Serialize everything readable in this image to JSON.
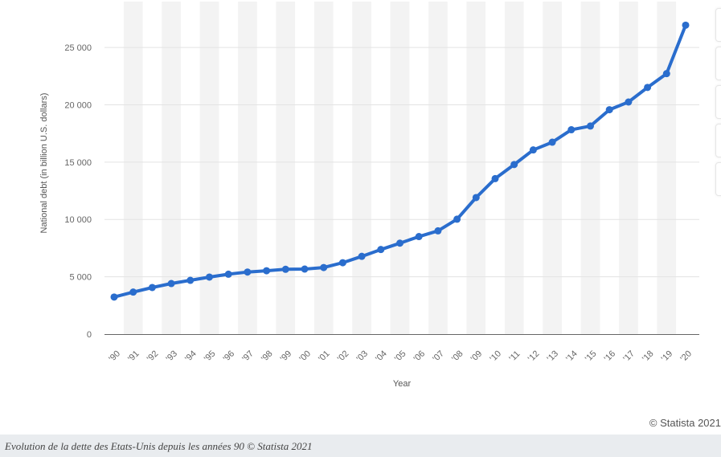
{
  "chart_data": {
    "type": "line",
    "title": "",
    "xlabel": "Year",
    "ylabel": "National debt (in billion U.S. dollars)",
    "categories": [
      "'90",
      "'91",
      "'92",
      "'93",
      "'94",
      "'95",
      "'96",
      "'97",
      "'98",
      "'99",
      "'00",
      "'01",
      "'02",
      "'03",
      "'04",
      "'05",
      "'06",
      "'07",
      "'08",
      "'09",
      "'10",
      "'11",
      "'12",
      "'13",
      "'14",
      "'15",
      "'16",
      "'17",
      "'18",
      "'19",
      "'20"
    ],
    "series": [
      {
        "values": [
          3233,
          3665,
          4065,
          4411,
          4693,
          4974,
          5225,
          5413,
          5526,
          5656,
          5674,
          5807,
          6228,
          6783,
          7379,
          7933,
          8507,
          9008,
          10025,
          11910,
          13562,
          14790,
          16066,
          16738,
          17824,
          18151,
          19573,
          20245,
          21516,
          22719,
          26945
        ]
      }
    ],
    "yticks": [
      0,
      5000,
      10000,
      15000,
      20000,
      25000
    ],
    "ytick_labels": [
      "0",
      "5 000",
      "10 000",
      "15 000",
      "20 000",
      "25 000"
    ],
    "ylim": [
      0,
      27600
    ],
    "grid": true,
    "legend": "none",
    "line_color": "#2a6dcd",
    "alt_band_color": "#f3f3f3",
    "gridline_color": "#e3e3e3",
    "axis_color": "#666666"
  },
  "copyright": "© Statista 2021",
  "caption": "Evolution de la dette des Etats-Unis depuis les années 90 © Statista 2021"
}
